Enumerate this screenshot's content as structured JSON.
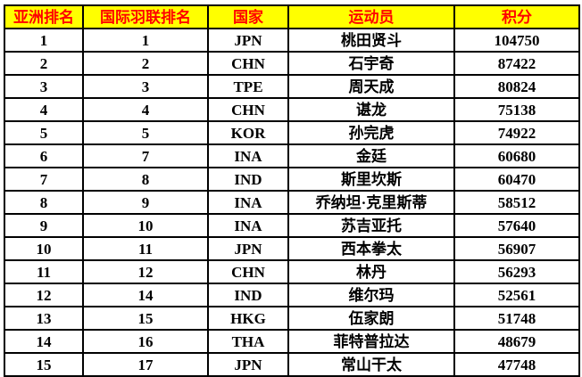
{
  "style": {
    "header_bg": "#ffff00",
    "header_text": "#ff0000",
    "body_text": "#000000",
    "border_color": "#000000",
    "page_bg": "#ffffff"
  },
  "chart_data": {
    "type": "table",
    "columns": [
      "亚洲排名",
      "国际羽联排名",
      "国家",
      "运动员",
      "积分"
    ],
    "rows": [
      [
        "1",
        "1",
        "JPN",
        "桃田贤斗",
        "104750"
      ],
      [
        "2",
        "2",
        "CHN",
        "石宇奇",
        "87422"
      ],
      [
        "3",
        "3",
        "TPE",
        "周天成",
        "80824"
      ],
      [
        "4",
        "4",
        "CHN",
        "谌龙",
        "75138"
      ],
      [
        "5",
        "5",
        "KOR",
        "孙完虎",
        "74922"
      ],
      [
        "6",
        "7",
        "INA",
        "金廷",
        "60680"
      ],
      [
        "7",
        "8",
        "IND",
        "斯里坎斯",
        "60470"
      ],
      [
        "8",
        "9",
        "INA",
        "乔纳坦·克里斯蒂",
        "58512"
      ],
      [
        "9",
        "10",
        "INA",
        "苏吉亚托",
        "57640"
      ],
      [
        "10",
        "11",
        "JPN",
        "西本拳太",
        "56907"
      ],
      [
        "11",
        "12",
        "CHN",
        "林丹",
        "56293"
      ],
      [
        "12",
        "14",
        "IND",
        "维尔玛",
        "52561"
      ],
      [
        "13",
        "15",
        "HKG",
        "伍家朗",
        "51748"
      ],
      [
        "14",
        "16",
        "THA",
        "菲特普拉达",
        "48679"
      ],
      [
        "15",
        "17",
        "JPN",
        "常山干太",
        "47748"
      ]
    ]
  }
}
